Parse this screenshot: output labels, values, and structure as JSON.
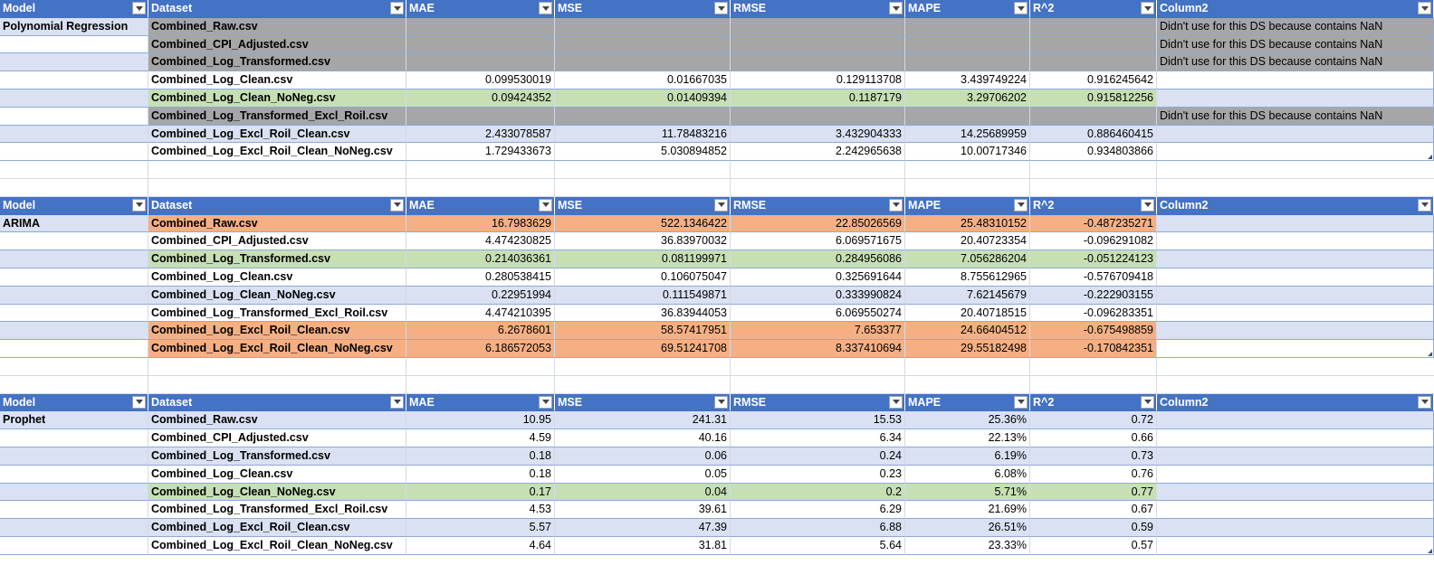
{
  "columns": [
    "Model",
    "Dataset",
    "MAE",
    "MSE",
    "RMSE",
    "MAPE",
    "R^2",
    "Column2"
  ],
  "tables": [
    {
      "model": "Polynomial Regression",
      "rows": [
        {
          "dataset": "Combined_Raw.csv",
          "mae": "",
          "mse": "",
          "rmse": "",
          "mape": "",
          "r2": "",
          "note": "Didn't use for this DS because contains NaN",
          "style": "gray"
        },
        {
          "dataset": "Combined_CPI_Adjusted.csv",
          "mae": "",
          "mse": "",
          "rmse": "",
          "mape": "",
          "r2": "",
          "note": "Didn't use for this DS because contains NaN",
          "style": "gray"
        },
        {
          "dataset": "Combined_Log_Transformed.csv",
          "mae": "",
          "mse": "",
          "rmse": "",
          "mape": "",
          "r2": "",
          "note": "Didn't use for this DS because contains NaN",
          "style": "gray"
        },
        {
          "dataset": "Combined_Log_Clean.csv",
          "mae": "0.099530019",
          "mse": "0.01667035",
          "rmse": "0.129113708",
          "mape": "3.439749224",
          "r2": "0.916245642",
          "note": "",
          "style": "white"
        },
        {
          "dataset": "Combined_Log_Clean_NoNeg.csv",
          "mae": "0.09424352",
          "mse": "0.01409394",
          "rmse": "0.1187179",
          "mape": "3.29706202",
          "r2": "0.915812256",
          "note": "",
          "style": "green"
        },
        {
          "dataset": "Combined_Log_Transformed_Excl_Roil.csv",
          "mae": "",
          "mse": "",
          "rmse": "",
          "mape": "",
          "r2": "",
          "note": "Didn't use for this DS because contains NaN",
          "style": "gray"
        },
        {
          "dataset": "Combined_Log_Excl_Roil_Clean.csv",
          "mae": "2.433078587",
          "mse": "11.78483216",
          "rmse": "3.432904333",
          "mape": "14.25689959",
          "r2": "0.886460415",
          "note": "",
          "style": "band"
        },
        {
          "dataset": "Combined_Log_Excl_Roil_Clean_NoNeg.csv",
          "mae": "1.729433673",
          "mse": "5.030894852",
          "rmse": "2.242965638",
          "mape": "10.00717346",
          "r2": "0.934803866",
          "note": "",
          "style": "white"
        }
      ]
    },
    {
      "model": "ARIMA",
      "rows": [
        {
          "dataset": "Combined_Raw.csv",
          "mae": "16.7983629",
          "mse": "522.1346422",
          "rmse": "22.85026569",
          "mape": "25.48310152",
          "r2": "-0.487235271",
          "note": "",
          "style": "orange"
        },
        {
          "dataset": "Combined_CPI_Adjusted.csv",
          "mae": "4.474230825",
          "mse": "36.83970032",
          "rmse": "6.069571675",
          "mape": "20.40723354",
          "r2": "-0.096291082",
          "note": "",
          "style": "white"
        },
        {
          "dataset": "Combined_Log_Transformed.csv",
          "mae": "0.214036361",
          "mse": "0.081199971",
          "rmse": "0.284956086",
          "mape": "7.056286204",
          "r2": "-0.051224123",
          "note": "",
          "style": "green"
        },
        {
          "dataset": "Combined_Log_Clean.csv",
          "mae": "0.280538415",
          "mse": "0.106075047",
          "rmse": "0.325691644",
          "mape": "8.755612965",
          "r2": "-0.576709418",
          "note": "",
          "style": "white"
        },
        {
          "dataset": "Combined_Log_Clean_NoNeg.csv",
          "mae": "0.22951994",
          "mse": "0.111549871",
          "rmse": "0.333990824",
          "mape": "7.62145679",
          "r2": "-0.222903155",
          "note": "",
          "style": "band"
        },
        {
          "dataset": "Combined_Log_Transformed_Excl_Roil.csv",
          "mae": "4.474210395",
          "mse": "36.83944053",
          "rmse": "6.069550274",
          "mape": "20.40718515",
          "r2": "-0.096283351",
          "note": "",
          "style": "white"
        },
        {
          "dataset": "Combined_Log_Excl_Roil_Clean.csv",
          "mae": "6.2678601",
          "mse": "58.57417951",
          "rmse": "7.653377",
          "mape": "24.66404512",
          "r2": "-0.675498859",
          "note": "",
          "style": "orange"
        },
        {
          "dataset": "Combined_Log_Excl_Roil_Clean_NoNeg.csv",
          "mae": "6.186572053",
          "mse": "69.51241708",
          "rmse": "8.337410694",
          "mape": "29.55182498",
          "r2": "-0.170842351",
          "note": "",
          "style": "orange"
        }
      ]
    },
    {
      "model": "Prophet",
      "rows": [
        {
          "dataset": "Combined_Raw.csv",
          "mae": "10.95",
          "mse": "241.31",
          "rmse": "15.53",
          "mape": "25.36%",
          "r2": "0.72",
          "note": "",
          "style": "band"
        },
        {
          "dataset": "Combined_CPI_Adjusted.csv",
          "mae": "4.59",
          "mse": "40.16",
          "rmse": "6.34",
          "mape": "22.13%",
          "r2": "0.66",
          "note": "",
          "style": "white"
        },
        {
          "dataset": "Combined_Log_Transformed.csv",
          "mae": "0.18",
          "mse": "0.06",
          "rmse": "0.24",
          "mape": "6.19%",
          "r2": "0.73",
          "note": "",
          "style": "band"
        },
        {
          "dataset": "Combined_Log_Clean.csv",
          "mae": "0.18",
          "mse": "0.05",
          "rmse": "0.23",
          "mape": "6.08%",
          "r2": "0.76",
          "note": "",
          "style": "white"
        },
        {
          "dataset": "Combined_Log_Clean_NoNeg.csv",
          "mae": "0.17",
          "mse": "0.04",
          "rmse": "0.2",
          "mape": "5.71%",
          "r2": "0.77",
          "note": "",
          "style": "green"
        },
        {
          "dataset": "Combined_Log_Transformed_Excl_Roil.csv",
          "mae": "4.53",
          "mse": "39.61",
          "rmse": "6.29",
          "mape": "21.69%",
          "r2": "0.67",
          "note": "",
          "style": "white"
        },
        {
          "dataset": "Combined_Log_Excl_Roil_Clean.csv",
          "mae": "5.57",
          "mse": "47.39",
          "rmse": "6.88",
          "mape": "26.51%",
          "r2": "0.59",
          "note": "",
          "style": "band"
        },
        {
          "dataset": "Combined_Log_Excl_Roil_Clean_NoNeg.csv",
          "mae": "4.64",
          "mse": "31.81",
          "rmse": "5.64",
          "mape": "23.33%",
          "r2": "0.57",
          "note": "",
          "style": "white"
        }
      ]
    }
  ],
  "colors": {
    "header": "#4472c4",
    "band": "#d9e1f2",
    "gray_fill": "#a6a6a6",
    "green_fill": "#c6e0b4",
    "orange_fill": "#f4b084"
  }
}
